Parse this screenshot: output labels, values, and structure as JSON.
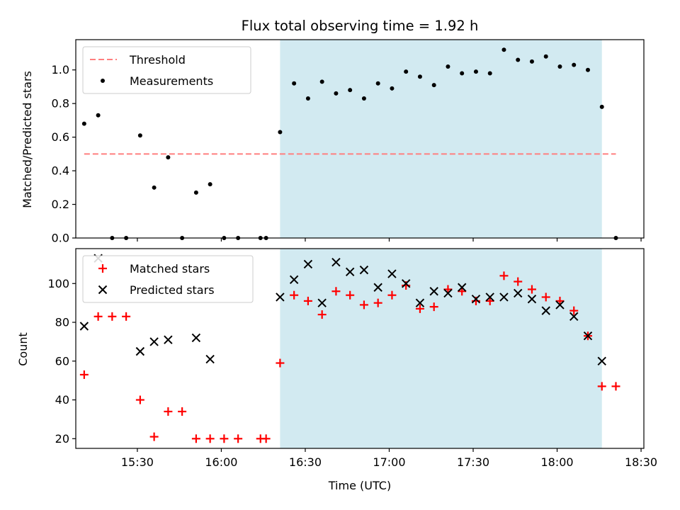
{
  "title": "Flux total observing time = 1.92 h",
  "colors": {
    "shade": "#add8e6",
    "threshold": "#ff7f7f",
    "measurement": "#000000",
    "matched": "#ff0000",
    "predicted": "#000000"
  },
  "chart_data": [
    {
      "type": "scatter",
      "ylabel": "Matched/Predicted stars",
      "xlim": [
        "15:08",
        "18:31"
      ],
      "ylim": [
        0,
        1.18
      ],
      "y_ticks": [
        0.0,
        0.2,
        0.4,
        0.6,
        0.8,
        1.0
      ],
      "y_tick_labels": [
        "0.0",
        "0.2",
        "0.4",
        "0.6",
        "0.8",
        "1.0"
      ],
      "shaded_interval": [
        "16:21",
        "18:16"
      ],
      "legend": {
        "placement": "top-left",
        "entries": [
          "Threshold",
          "Measurements"
        ]
      },
      "threshold": {
        "name": "Threshold",
        "value": 0.5,
        "x_range": [
          "15:11",
          "18:21"
        ]
      },
      "series": [
        {
          "name": "Measurements",
          "x": [
            "15:11",
            "15:16",
            "15:21",
            "15:26",
            "15:31",
            "15:36",
            "15:41",
            "15:46",
            "15:51",
            "15:56",
            "16:01",
            "16:06",
            "16:14",
            "16:16",
            "16:21",
            "16:26",
            "16:31",
            "16:36",
            "16:41",
            "16:46",
            "16:51",
            "16:56",
            "17:01",
            "17:06",
            "17:11",
            "17:16",
            "17:21",
            "17:26",
            "17:31",
            "17:36",
            "17:41",
            "17:46",
            "17:51",
            "17:56",
            "18:01",
            "18:06",
            "18:11",
            "18:16",
            "18:21"
          ],
          "y": [
            0.68,
            0.73,
            0.0,
            0.0,
            0.61,
            0.3,
            0.48,
            0.0,
            0.27,
            0.32,
            0.0,
            0.0,
            0.0,
            0.0,
            0.63,
            0.92,
            0.83,
            0.93,
            0.86,
            0.88,
            0.83,
            0.92,
            0.89,
            0.99,
            0.96,
            0.91,
            1.02,
            0.98,
            0.99,
            0.98,
            1.12,
            1.06,
            1.05,
            1.08,
            1.02,
            1.03,
            1.0,
            0.78,
            0.0
          ]
        }
      ]
    },
    {
      "type": "scatter",
      "xlabel": "Time (UTC)",
      "ylabel": "Count",
      "xlim": [
        "15:08",
        "18:31"
      ],
      "ylim": [
        15,
        118
      ],
      "y_ticks": [
        20,
        40,
        60,
        80,
        100
      ],
      "y_tick_labels": [
        "20",
        "40",
        "60",
        "80",
        "100"
      ],
      "x_ticks": [
        "15:30",
        "16:00",
        "16:30",
        "17:00",
        "17:30",
        "18:00",
        "18:30"
      ],
      "x_tick_labels": [
        "15:30",
        "16:00",
        "16:30",
        "17:00",
        "17:30",
        "18:00",
        "18:30"
      ],
      "shaded_interval": [
        "16:21",
        "18:16"
      ],
      "legend": {
        "placement": "top-left",
        "entries": [
          "Matched stars",
          "Predicted stars"
        ]
      },
      "series": [
        {
          "name": "Matched stars",
          "marker": "+",
          "x": [
            "15:11",
            "15:16",
            "15:21",
            "15:26",
            "15:31",
            "15:36",
            "15:41",
            "15:46",
            "15:51",
            "15:56",
            "16:01",
            "16:06",
            "16:14",
            "16:16",
            "16:21",
            "16:26",
            "16:31",
            "16:36",
            "16:41",
            "16:46",
            "16:51",
            "16:56",
            "17:01",
            "17:06",
            "17:11",
            "17:16",
            "17:21",
            "17:26",
            "17:31",
            "17:36",
            "17:41",
            "17:46",
            "17:51",
            "17:56",
            "18:01",
            "18:06",
            "18:11",
            "18:16",
            "18:21"
          ],
          "y": [
            53,
            83,
            83,
            83,
            40,
            21,
            34,
            34,
            20,
            20,
            20,
            20,
            20,
            20,
            59,
            94,
            91,
            84,
            96,
            94,
            89,
            90,
            94,
            99,
            87,
            88,
            97,
            96,
            91,
            91,
            104,
            101,
            97,
            93,
            91,
            86,
            73,
            47,
            47
          ]
        },
        {
          "name": "Predicted stars",
          "marker": "x",
          "x": [
            "15:11",
            "15:16",
            "15:31",
            "15:36",
            "15:41",
            "15:51",
            "15:56",
            "16:21",
            "16:26",
            "16:31",
            "16:36",
            "16:41",
            "16:46",
            "16:51",
            "16:56",
            "17:01",
            "17:06",
            "17:11",
            "17:16",
            "17:21",
            "17:26",
            "17:31",
            "17:36",
            "17:41",
            "17:46",
            "17:51",
            "17:56",
            "18:01",
            "18:06",
            "18:11",
            "18:16"
          ],
          "y": [
            78,
            113,
            65,
            70,
            71,
            72,
            61,
            93,
            102,
            110,
            90,
            111,
            106,
            107,
            98,
            105,
            100,
            90,
            96,
            95,
            98,
            92,
            93,
            93,
            95,
            92,
            86,
            89,
            83,
            73,
            60
          ]
        }
      ]
    }
  ]
}
